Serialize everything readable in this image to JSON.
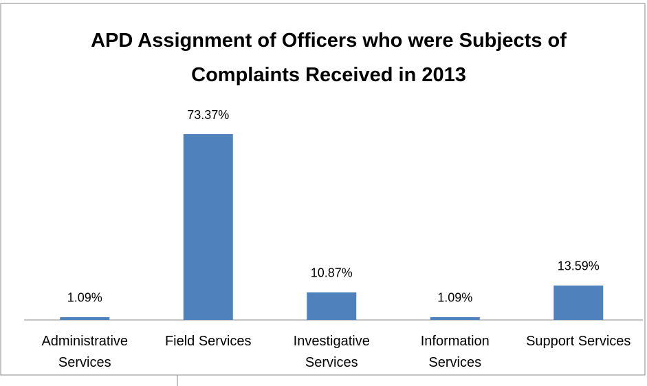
{
  "chart_data": {
    "type": "bar",
    "title": "APD Assignment of Officers who were Subjects of Complaints Received in 2013",
    "categories": [
      "Administrative Services",
      "Field Services",
      "Investigative Services",
      "Information Services",
      "Support Services"
    ],
    "values": [
      1.09,
      73.37,
      10.87,
      1.09,
      13.59
    ],
    "value_labels": [
      "1.09%",
      "73.37%",
      "10.87%",
      "1.09%",
      "13.59%"
    ],
    "color": "#4f81bd"
  }
}
